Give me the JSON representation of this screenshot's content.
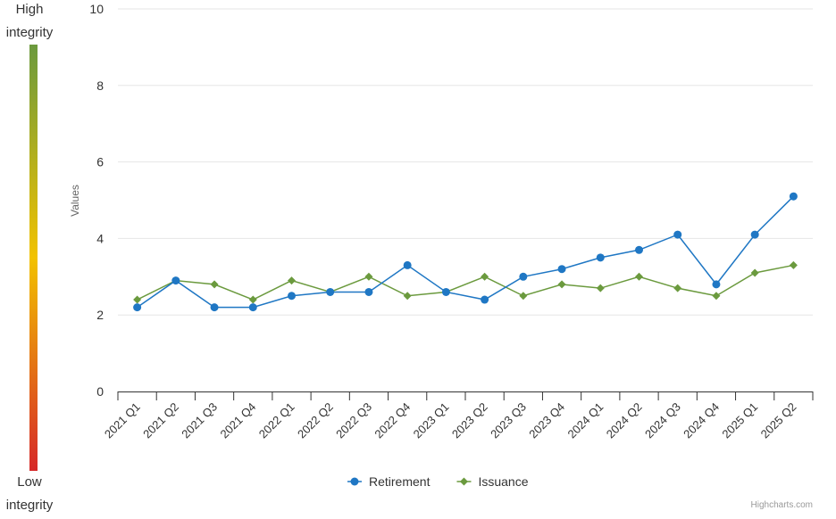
{
  "scale": {
    "high_label_1": "High",
    "high_label_2": "integrity",
    "low_label_1": "Low",
    "low_label_2": "integrity",
    "gradient_colors": [
      "#6b9a3e",
      "#f2c200",
      "#d62828"
    ]
  },
  "credits": "Highcharts.com",
  "chart_data": {
    "type": "line",
    "title": "",
    "xlabel": "",
    "ylabel": "Values",
    "ylim": [
      0,
      10
    ],
    "yticks": [
      0,
      2,
      4,
      6,
      8,
      10
    ],
    "grid": true,
    "legend_position": "bottom-center",
    "categories": [
      "2021 Q1",
      "2021 Q2",
      "2021 Q3",
      "2021 Q4",
      "2022 Q1",
      "2022 Q2",
      "2022 Q3",
      "2022 Q4",
      "2023 Q1",
      "2023 Q2",
      "2023 Q3",
      "2023 Q4",
      "2024 Q1",
      "2024 Q2",
      "2024 Q3",
      "2024 Q4",
      "2025 Q1",
      "2025 Q2"
    ],
    "series": [
      {
        "name": "Retirement",
        "color": "#1f77c4",
        "marker": "circle",
        "values": [
          2.2,
          2.9,
          2.2,
          2.2,
          2.5,
          2.6,
          2.6,
          3.3,
          2.6,
          2.4,
          3.0,
          3.2,
          3.5,
          3.7,
          4.1,
          2.8,
          4.1,
          5.1
        ]
      },
      {
        "name": "Issuance",
        "color": "#6b9a3e",
        "marker": "diamond",
        "values": [
          2.4,
          2.9,
          2.8,
          2.4,
          2.9,
          2.6,
          3.0,
          2.5,
          2.6,
          3.0,
          2.5,
          2.8,
          2.7,
          3.0,
          2.7,
          2.5,
          3.1,
          3.3
        ]
      }
    ]
  }
}
